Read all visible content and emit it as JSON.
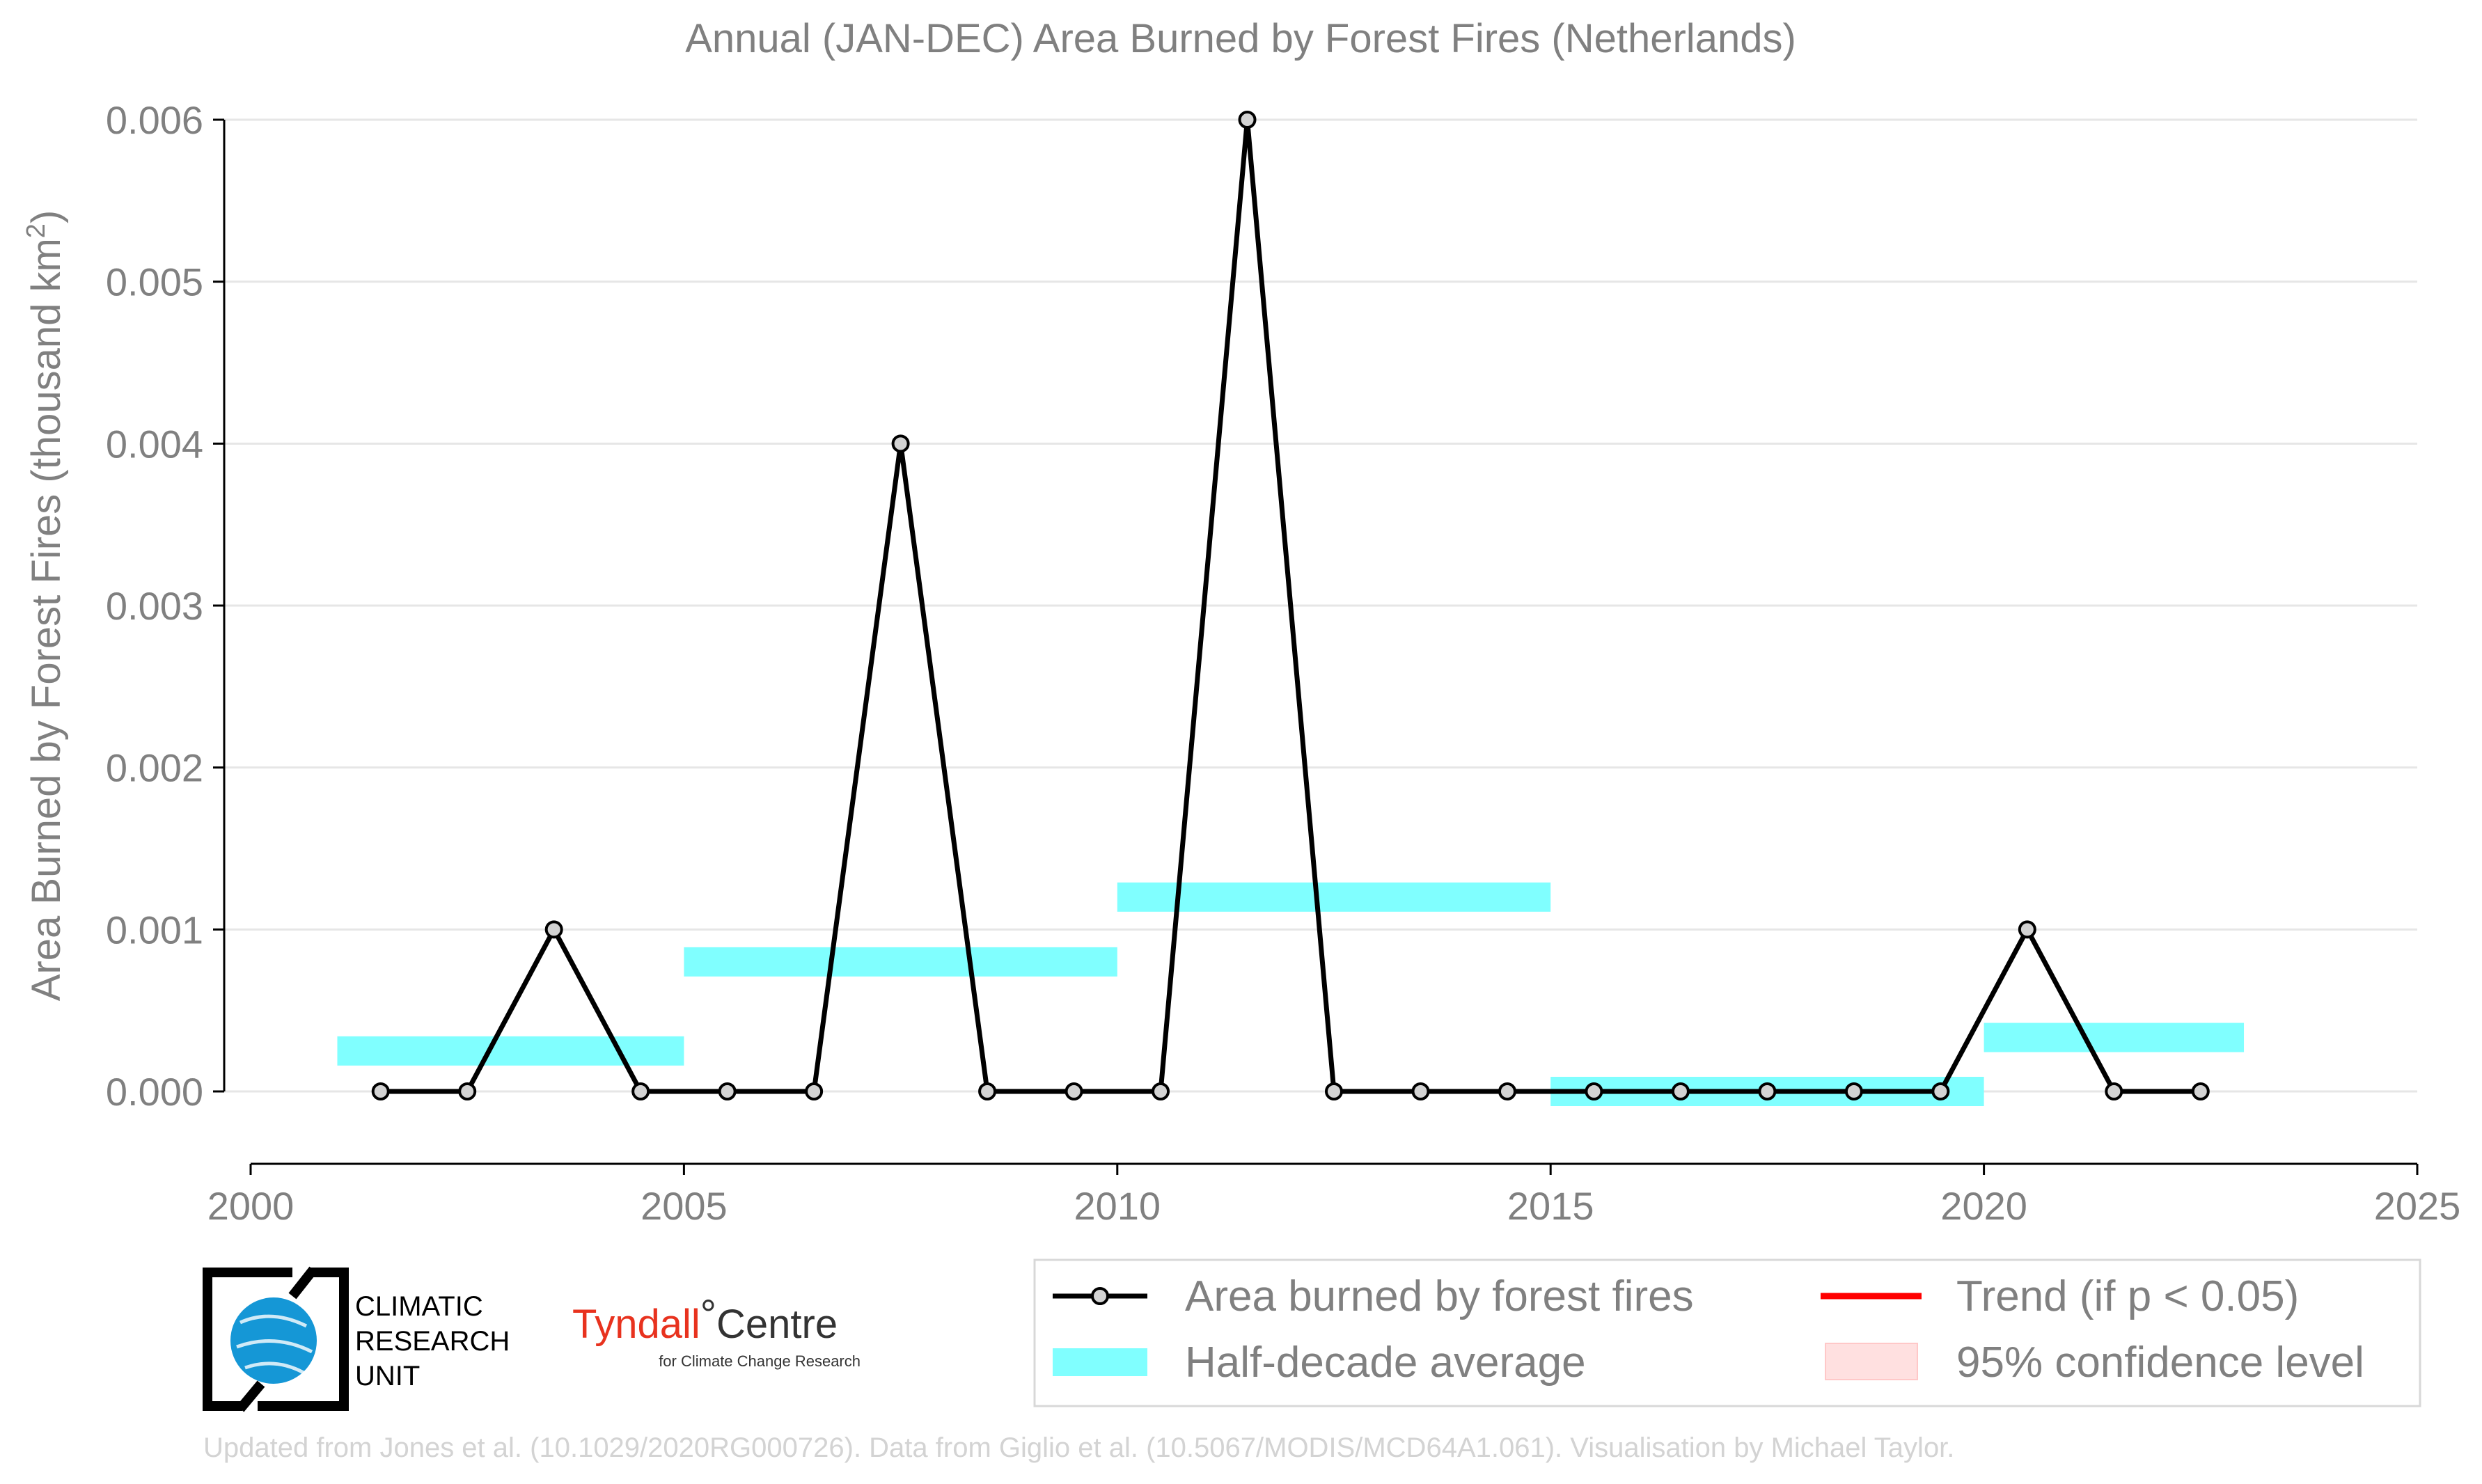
{
  "chart_data": {
    "type": "line",
    "title": "Annual (JAN-DEC) Area Burned by Forest Fires (Netherlands)",
    "ylabel": "Area Burned by Forest Fires (thousand km",
    "ylabel_superscript": "2",
    "ylabel_suffix": ")",
    "xlim": [
      2000,
      2025
    ],
    "ylim": [
      -0.00045,
      0.0062
    ],
    "x_ticks": [
      2000,
      2005,
      2010,
      2015,
      2020,
      2025
    ],
    "x_tick_labels": [
      "2000",
      "2005",
      "2010",
      "2015",
      "2020",
      "2025"
    ],
    "y_ticks": [
      0,
      0.001,
      0.002,
      0.003,
      0.004,
      0.005,
      0.006
    ],
    "y_tick_labels": [
      "0.000",
      "0.001",
      "0.002",
      "0.003",
      "0.004",
      "0.005",
      "0.006"
    ],
    "grid": "horizontal",
    "series": [
      {
        "name": "Area burned by forest fires",
        "color": "#000000",
        "marker_fill": "#d3d3d3",
        "x": [
          2001.5,
          2002.5,
          2003.5,
          2004.5,
          2005.5,
          2006.5,
          2007.5,
          2008.5,
          2009.5,
          2010.5,
          2011.5,
          2012.5,
          2013.5,
          2014.5,
          2015.5,
          2016.5,
          2017.5,
          2018.5,
          2019.5,
          2020.5,
          2021.5,
          2022.5
        ],
        "values": [
          0,
          0,
          0.001,
          0,
          0,
          0,
          0.004,
          0,
          0,
          0,
          0.006,
          0,
          0,
          0,
          0,
          0,
          0,
          0,
          0,
          0.001,
          0,
          0
        ]
      }
    ],
    "half_decade_average": {
      "name": "Half-decade average",
      "color": "#80ffff",
      "segments": [
        {
          "x0": 2001,
          "x1": 2005,
          "value": 0.00025
        },
        {
          "x0": 2005,
          "x1": 2010,
          "value": 0.0008
        },
        {
          "x0": 2010,
          "x1": 2015,
          "value": 0.0012
        },
        {
          "x0": 2015,
          "x1": 2020,
          "value": 0.0
        },
        {
          "x0": 2020,
          "x1": 2023,
          "value": 0.000333
        }
      ]
    },
    "legend": {
      "placement": "bottom-right",
      "entries": [
        {
          "label": "Area burned by forest fires",
          "kind": "line-marker",
          "color": "#000000"
        },
        {
          "label": "Trend (if p < 0.05)",
          "kind": "line",
          "color": "#ff0000"
        },
        {
          "label": "Half-decade average",
          "kind": "band",
          "color": "#80ffff"
        },
        {
          "label": "95% confidence level",
          "kind": "patch",
          "color": "#ffe0e0"
        }
      ]
    },
    "credit": "Updated from Jones et al. (10.1029/2020RG000726). Data from Giglio et al. (10.5067/MODIS/MCD64A1.061). Visualisation by Michael Taylor."
  },
  "logos": {
    "cru_lines": [
      "CLIMATIC",
      "RESEARCH",
      "UNIT"
    ],
    "tyndall_red": "Tyndall",
    "tyndall_degree": "°",
    "tyndall_dark": "Centre",
    "tyndall_sub": "for Climate Change Research"
  }
}
